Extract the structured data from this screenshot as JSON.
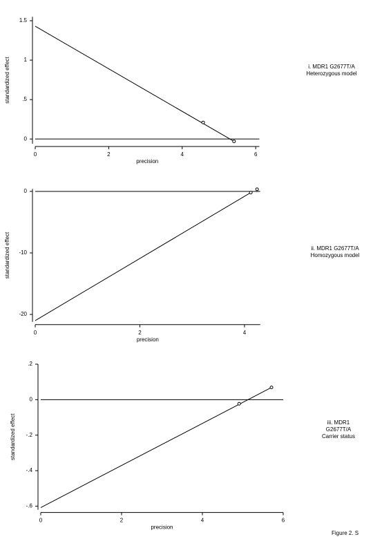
{
  "chart_data": [
    {
      "type": "scatter",
      "x_label": "precision",
      "y_label": "standardized effect",
      "annotation": [
        "i. MDR1 G2677T/A",
        "Heterozygous model"
      ],
      "x": [
        4.57,
        5.41
      ],
      "values": [
        0.21,
        -0.03
      ],
      "fit_line": {
        "x": [
          0,
          5.41
        ],
        "y": [
          1.43,
          -0.03
        ]
      },
      "xlim": [
        0,
        6.1
      ],
      "ylim": [
        -0.06,
        1.55
      ],
      "xticks": [
        0,
        2,
        4,
        6
      ],
      "yticks": [
        0,
        {
          "value": 0.5,
          "label": ".5"
        },
        1,
        1.5
      ],
      "color": "#000000"
    },
    {
      "type": "scatter",
      "x_label": "precision",
      "y_label": "standardized effect",
      "annotation": [
        "ii. MDR1 G2677T/A",
        "Homozygous model"
      ],
      "x": [
        4.24,
        4.12
      ],
      "values": [
        0.34,
        -0.2
      ],
      "fit_line": {
        "x": [
          0,
          4.12
        ],
        "y": [
          -21,
          -0.2
        ]
      },
      "xlim": [
        0,
        4.3
      ],
      "ylim": [
        -21.2,
        0.4
      ],
      "xticks": [
        0,
        2,
        4
      ],
      "yticks": [
        -20,
        -10,
        0
      ],
      "color": "#000000"
    },
    {
      "type": "scatter",
      "x_label": "precision",
      "y_label": "standardized effect",
      "annotation": [
        "iii. MDR1",
        "G2677T/A",
        "Carrier status"
      ],
      "x": [
        5.71,
        4.91
      ],
      "values": [
        0.069,
        -0.023
      ],
      "fit_line": {
        "x": [
          0,
          5.71
        ],
        "y": [
          -0.608,
          0.069
        ]
      },
      "xlim": [
        0,
        6
      ],
      "ylim": [
        -0.62,
        0.2
      ],
      "xticks": [
        0,
        2,
        4,
        6
      ],
      "yticks": [
        {
          "value": -0.6,
          "label": "-.6"
        },
        {
          "value": -0.4,
          "label": "-.4"
        },
        {
          "value": -0.2,
          "label": "-.2"
        },
        0,
        {
          "value": 0.2,
          "label": ".2"
        }
      ],
      "color": "#000000"
    }
  ],
  "figure_label": "Figure 2. S"
}
